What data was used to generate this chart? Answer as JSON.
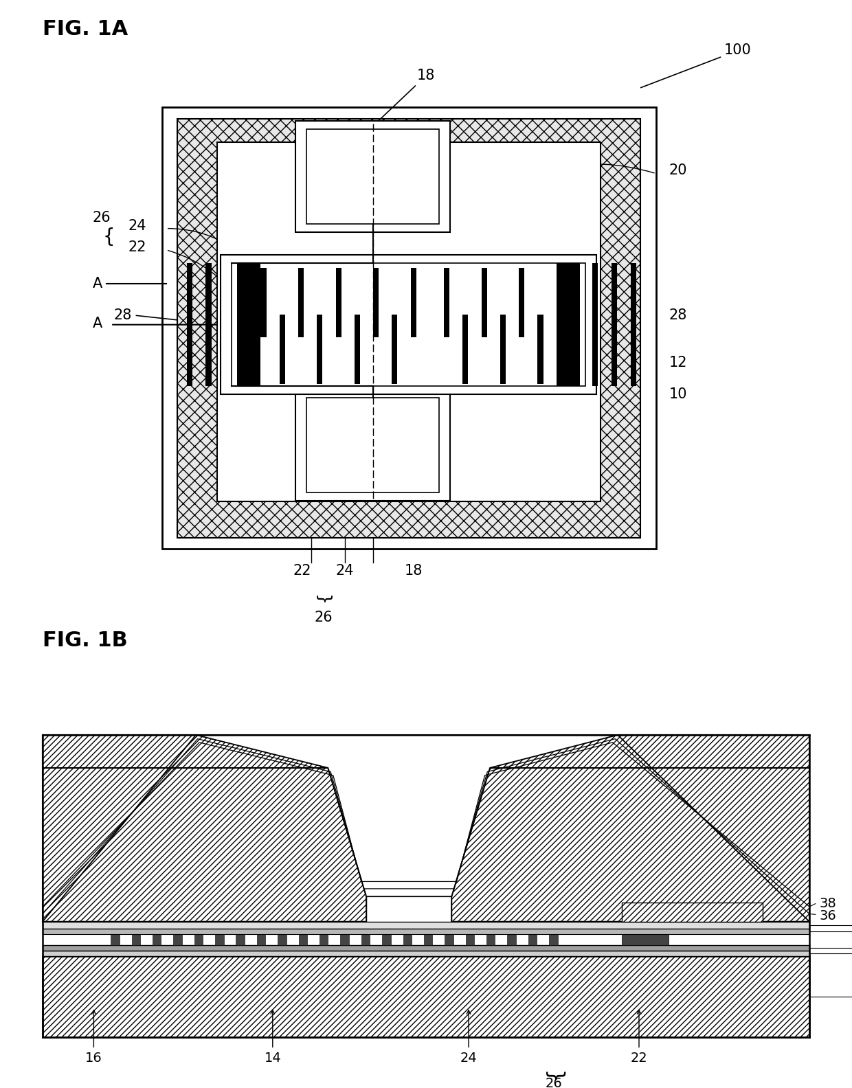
{
  "fig_label_1a": "FIG. 1A",
  "fig_label_1b": "FIG. 1B",
  "bg_color": "#ffffff",
  "line_color": "#000000",
  "label_fontsize": 18,
  "annotation_fontsize": 15
}
